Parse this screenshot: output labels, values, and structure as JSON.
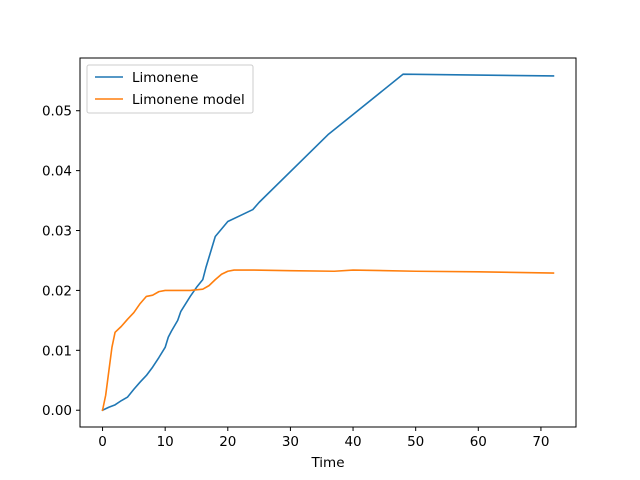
{
  "chart_data": {
    "type": "line",
    "title": "",
    "xlabel": "Time",
    "ylabel": "",
    "xlim": [
      -3.6,
      75.6
    ],
    "ylim": [
      -0.0028,
      0.0588
    ],
    "xticks": [
      0,
      10,
      20,
      30,
      40,
      50,
      60,
      70
    ],
    "xtick_labels": [
      "0",
      "10",
      "20",
      "30",
      "40",
      "50",
      "60",
      "70"
    ],
    "yticks": [
      0.0,
      0.01,
      0.02,
      0.03,
      0.04,
      0.05
    ],
    "ytick_labels": [
      "0.00",
      "0.01",
      "0.02",
      "0.03",
      "0.04",
      "0.05"
    ],
    "grid": false,
    "legend_position": "upper-left",
    "series": [
      {
        "name": "Limonene",
        "color": "#1f77b4",
        "points": [
          [
            0,
            0.0
          ],
          [
            1,
            0.0005
          ],
          [
            2,
            0.0009
          ],
          [
            3,
            0.0016
          ],
          [
            4,
            0.0022
          ],
          [
            5,
            0.0035
          ],
          [
            6,
            0.0047
          ],
          [
            7,
            0.0058
          ],
          [
            8,
            0.0072
          ],
          [
            9,
            0.0088
          ],
          [
            10,
            0.0105
          ],
          [
            10.5,
            0.0122
          ],
          [
            11,
            0.0132
          ],
          [
            12,
            0.015
          ],
          [
            12.5,
            0.0165
          ],
          [
            14,
            0.019
          ],
          [
            15,
            0.0205
          ],
          [
            16,
            0.0218
          ],
          [
            16.5,
            0.0238
          ],
          [
            18,
            0.029
          ],
          [
            20,
            0.0315
          ],
          [
            22,
            0.0325
          ],
          [
            24,
            0.0335
          ],
          [
            25,
            0.0347
          ],
          [
            36,
            0.046
          ],
          [
            48,
            0.0561
          ],
          [
            72,
            0.0558
          ]
        ]
      },
      {
        "name": "Limonene model",
        "color": "#ff7f0e",
        "points": [
          [
            0,
            0.0
          ],
          [
            0.5,
            0.0025
          ],
          [
            1,
            0.0065
          ],
          [
            1.5,
            0.0105
          ],
          [
            2,
            0.013
          ],
          [
            3,
            0.014
          ],
          [
            4,
            0.0152
          ],
          [
            5,
            0.0163
          ],
          [
            6,
            0.0178
          ],
          [
            7,
            0.019
          ],
          [
            8,
            0.0192
          ],
          [
            9,
            0.0198
          ],
          [
            10,
            0.02
          ],
          [
            12,
            0.02
          ],
          [
            14,
            0.02
          ],
          [
            16,
            0.0202
          ],
          [
            17,
            0.0208
          ],
          [
            18,
            0.0218
          ],
          [
            19,
            0.0227
          ],
          [
            20,
            0.0232
          ],
          [
            21,
            0.0234
          ],
          [
            24,
            0.0234
          ],
          [
            30,
            0.0233
          ],
          [
            37,
            0.0232
          ],
          [
            40,
            0.0234
          ],
          [
            50,
            0.0232
          ],
          [
            60,
            0.0231
          ],
          [
            72,
            0.0229
          ]
        ]
      }
    ]
  }
}
